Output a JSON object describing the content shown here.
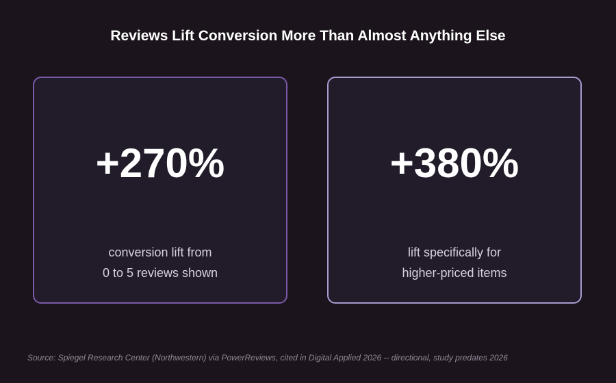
{
  "title": "Reviews Lift Conversion More Than Almost Anything Else",
  "cards": [
    {
      "stat": "+270%",
      "description_lines": [
        "conversion lift from",
        "0 to 5 reviews shown"
      ],
      "border_color": "#7a5aa8"
    },
    {
      "stat": "+380%",
      "description_lines": [
        "lift specifically for",
        "higher-priced items"
      ],
      "border_color": "#a99bd0"
    }
  ],
  "source": "Source: Spiegel Research Center (Northwestern) via PowerReviews, cited in Digital Applied 2026 -- directional, study predates 2026",
  "colors": {
    "background": "#1c141d",
    "card_background": "#221b29",
    "text": "#ffffff",
    "muted_text": "#d8d0dc",
    "source_text": "#8f8794"
  }
}
